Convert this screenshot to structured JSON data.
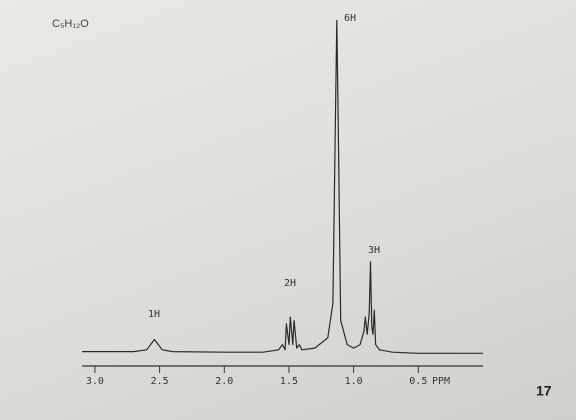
{
  "chart_data": {
    "type": "line",
    "formula": "C₅H₁₂O",
    "xlabel": "PPM",
    "x": [
      3.1,
      2.9,
      2.7,
      2.6,
      2.56,
      2.54,
      2.52,
      2.48,
      2.4,
      2.0,
      1.7,
      1.58,
      1.55,
      1.53,
      1.52,
      1.5,
      1.49,
      1.47,
      1.46,
      1.44,
      1.42,
      1.4,
      1.3,
      1.2,
      1.16,
      1.14,
      1.13,
      1.12,
      1.1,
      1.05,
      1.0,
      0.95,
      0.92,
      0.91,
      0.895,
      0.88,
      0.87,
      0.86,
      0.85,
      0.84,
      0.83,
      0.8,
      0.7,
      0.5,
      0.2,
      0.0
    ],
    "values": [
      1,
      1,
      1,
      1.5,
      3.5,
      4.5,
      3.5,
      1.5,
      1,
      0.8,
      0.8,
      1.5,
      3,
      1.5,
      9,
      3,
      11,
      3,
      10,
      2,
      3,
      1.5,
      2,
      5,
      15,
      70,
      97,
      70,
      10,
      3,
      2,
      3,
      7,
      11,
      6,
      12,
      27,
      8,
      6,
      13,
      3,
      1.5,
      0.8,
      0.5,
      0.5,
      0.5
    ],
    "color": "#2a2a2a",
    "xlim": [
      3.1,
      0.0
    ],
    "ylim": [
      0,
      100
    ],
    "xticks": [
      {
        "value": 3,
        "label": "3.0"
      },
      2.5,
      {
        "value": 2,
        "label": "2.0"
      },
      1.5,
      {
        "value": 1,
        "label": "1.0"
      },
      0.5
    ],
    "annotations": [
      "1H",
      "2H",
      "6H",
      "3H"
    ]
  },
  "page_number": "17"
}
